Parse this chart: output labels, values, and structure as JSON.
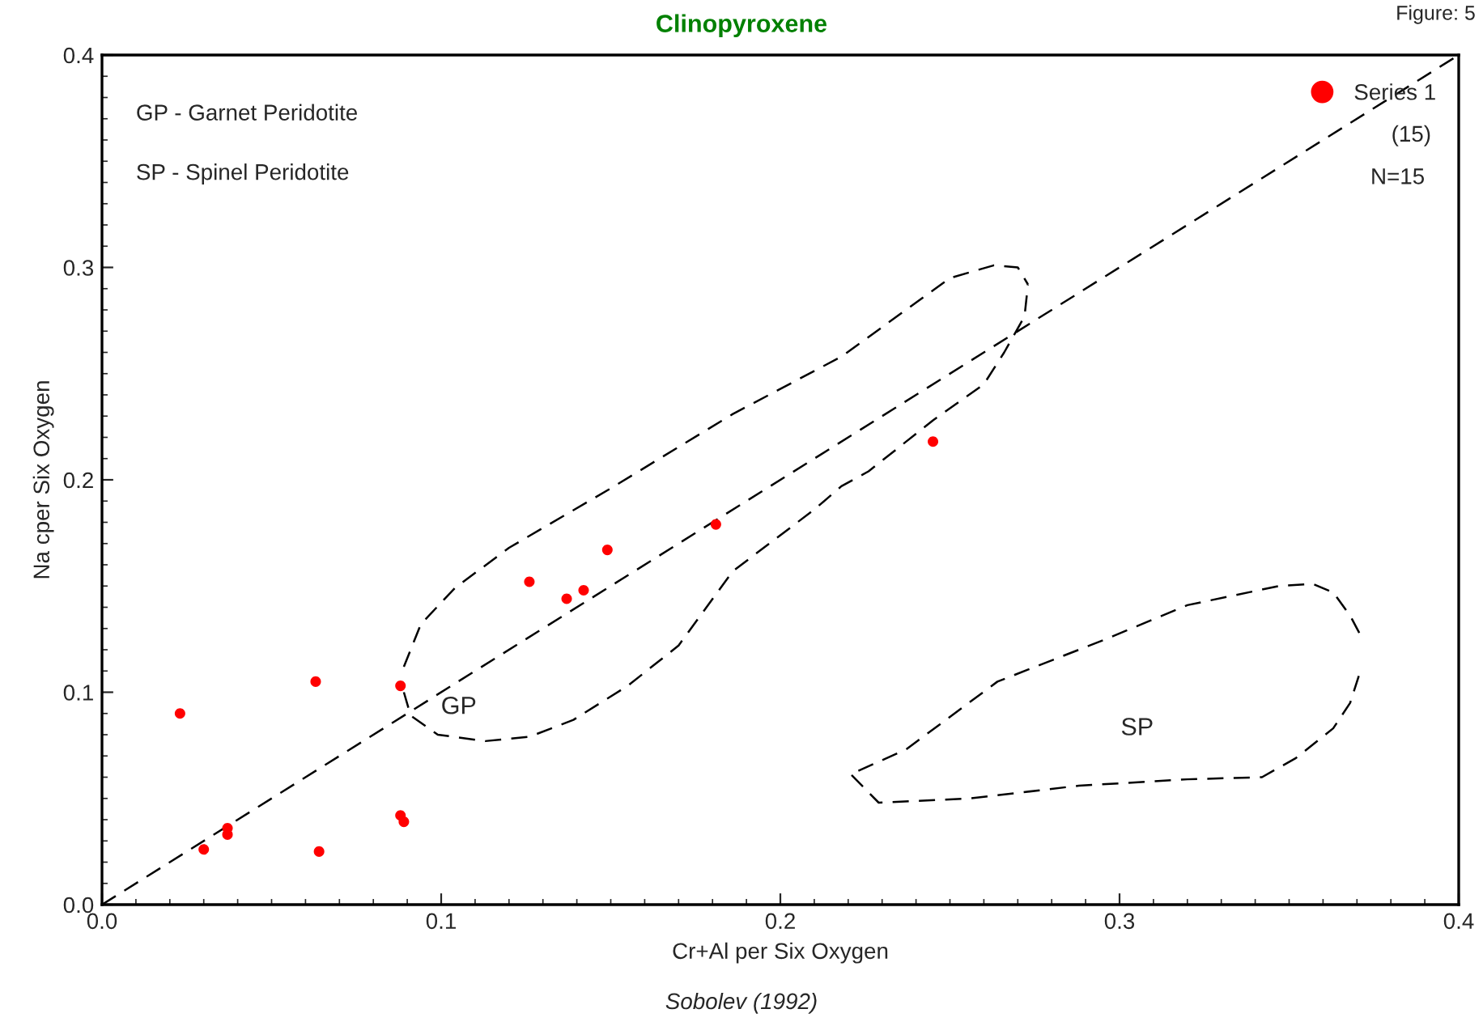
{
  "chart_data": {
    "type": "scatter",
    "title": "Clinopyroxene",
    "xlabel": "Cr+Al per Six Oxygen",
    "ylabel": "Na cper Six Oxygen",
    "series": [
      {
        "name": "Series 1",
        "color": "#ff0000",
        "marker": "circle",
        "x": [
          0.023,
          0.03,
          0.037,
          0.037,
          0.063,
          0.064,
          0.088,
          0.088,
          0.089,
          0.126,
          0.137,
          0.142,
          0.149,
          0.181,
          0.245
        ],
        "values": [
          0.09,
          0.026,
          0.036,
          0.033,
          0.105,
          0.025,
          0.103,
          0.042,
          0.039,
          0.152,
          0.144,
          0.148,
          0.167,
          0.179,
          0.218
        ]
      },
      {
        "type": "line",
        "color": "#000000",
        "line_style": "dashed",
        "marker": "none",
        "x": [
          0.0,
          0.4
        ],
        "values": [
          0.0,
          0.4
        ]
      },
      {
        "type": "line",
        "color": "#000000",
        "line_style": "dashed",
        "marker": "none",
        "x": [
          0.089,
          0.094,
          0.104,
          0.12,
          0.15,
          0.186,
          0.218,
          0.25,
          0.263,
          0.27,
          0.273
        ],
        "values": [
          0.112,
          0.132,
          0.149,
          0.168,
          0.196,
          0.231,
          0.258,
          0.295,
          0.301,
          0.3,
          0.292
        ]
      },
      {
        "type": "line",
        "color": "#000000",
        "line_style": "dashed",
        "marker": "none",
        "x": [
          0.089,
          0.091,
          0.099,
          0.113,
          0.126,
          0.139,
          0.155,
          0.17,
          0.186,
          0.21,
          0.218,
          0.226,
          0.245,
          0.26,
          0.266,
          0.272,
          0.273
        ],
        "values": [
          0.1,
          0.089,
          0.08,
          0.077,
          0.079,
          0.087,
          0.103,
          0.122,
          0.157,
          0.186,
          0.197,
          0.204,
          0.228,
          0.245,
          0.26,
          0.277,
          0.292
        ]
      },
      {
        "type": "line",
        "color": "#000000",
        "line_style": "dashed",
        "marker": "none",
        "x": [
          0.223,
          0.237,
          0.264,
          0.296,
          0.32,
          0.347,
          0.357,
          0.363,
          0.368,
          0.371
        ],
        "values": [
          0.063,
          0.073,
          0.105,
          0.125,
          0.141,
          0.15,
          0.151,
          0.147,
          0.136,
          0.127
        ]
      },
      {
        "type": "line",
        "color": "#000000",
        "line_style": "dashed",
        "marker": "none",
        "x": [
          0.221,
          0.229,
          0.256,
          0.288,
          0.32,
          0.342,
          0.352,
          0.363,
          0.368,
          0.371
        ],
        "values": [
          0.061,
          0.048,
          0.05,
          0.056,
          0.059,
          0.06,
          0.069,
          0.083,
          0.095,
          0.11
        ]
      }
    ],
    "annotations": [
      "GP - Garnet Peridotite",
      "SP - Spinel Peridotite",
      "(15)",
      "N=15",
      "Figure: 5",
      "Sobolev (1992)",
      "GP",
      "SP"
    ],
    "xlim": [
      0.0,
      0.4
    ],
    "ylim": [
      0.0,
      0.4
    ],
    "xticks": [
      {
        "value": 0,
        "label": "0.0"
      },
      0.1,
      0.2,
      0.3,
      0.4
    ],
    "yticks": [
      {
        "value": 0,
        "label": "0.0"
      },
      0.1,
      0.2,
      0.3,
      0.4
    ],
    "grid": false,
    "legend": "top right"
  }
}
